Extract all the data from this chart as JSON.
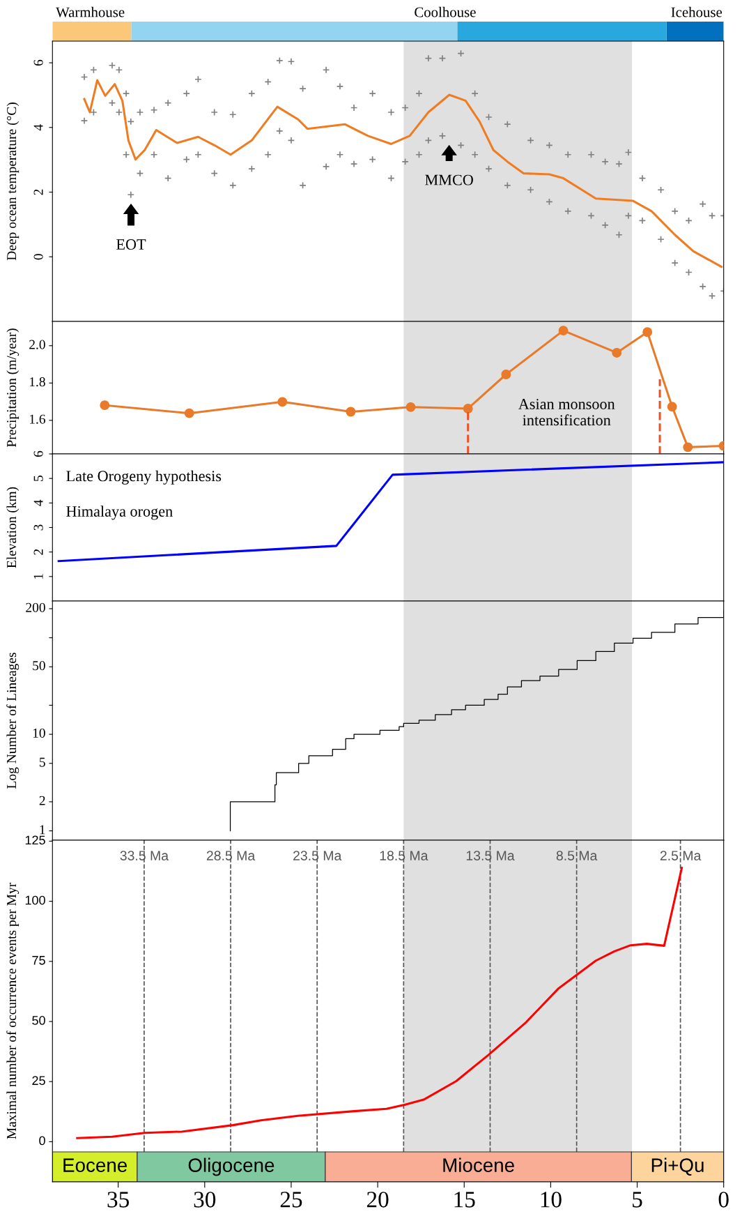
{
  "chart_data": [
    {
      "type": "bar",
      "orientation": "horizontal",
      "stacked": true,
      "categories": [
        null
      ],
      "xlim": [
        38.8,
        0
      ],
      "tick_labels": false,
      "series": [
        {
          "color": "#0070bf",
          "values": [
            3.3
          ]
        },
        {
          "color": "#29a8e0",
          "values": [
            12.1
          ]
        },
        {
          "color": "#93d4f0",
          "values": [
            18.85
          ]
        },
        {
          "color": "#fbc778",
          "values": [
            4.55
          ]
        }
      ],
      "annotations": [
        "Warmhouse",
        "Coolhouse",
        "Icehouse"
      ]
    },
    {
      "type": "scatter",
      "xlim": [
        38.8,
        0
      ],
      "ylim": [
        -2.0,
        6.67
      ],
      "yticks": [
        0,
        2,
        4,
        6
      ],
      "ylabel": "Deep ocean temperature (°C)",
      "tick_labels": "y",
      "bands": [
        {
          "axis": "x",
          "from": 18.5,
          "to": 5.3,
          "color": "#e0e0e0"
        }
      ],
      "series": [
        {
          "type": "scatter",
          "marker": "cross",
          "color": "#808080",
          "x": [
            36.96,
            36.96,
            36.42,
            36.42,
            35.35,
            35.35,
            34.95,
            34.95,
            34.54,
            34.54,
            34.27,
            34.27,
            33.74,
            33.74,
            32.93,
            32.93,
            32.12,
            32.12,
            31.05,
            31.05,
            30.38,
            30.38,
            29.44,
            29.44,
            28.37,
            28.37,
            27.28,
            27.28,
            26.34,
            26.34,
            25.67,
            25.67,
            25.0,
            25.0,
            24.33,
            24.33,
            22.98,
            22.98,
            22.18,
            22.18,
            21.37,
            21.37,
            20.3,
            20.3,
            19.22,
            19.22,
            18.41,
            18.41,
            17.61,
            17.61,
            17.07,
            17.07,
            16.26,
            16.26,
            15.19,
            15.19,
            14.38,
            14.38,
            13.58,
            13.58,
            12.5,
            12.5,
            11.16,
            11.16,
            10.08,
            10.08,
            9.0,
            9.0,
            7.66,
            7.66,
            6.85,
            6.85,
            6.05,
            6.05,
            5.51,
            5.51,
            4.7,
            4.7,
            3.63,
            3.63,
            2.82,
            2.82,
            2.02,
            2.02,
            1.21,
            1.21,
            0.67,
            0.67,
            0.0,
            0.0
          ],
          "values": [
            5.56,
            4.21,
            5.78,
            4.47,
            5.92,
            4.76,
            5.78,
            4.47,
            5.05,
            3.16,
            4.18,
            1.92,
            4.47,
            2.58,
            4.54,
            3.16,
            4.76,
            2.43,
            5.05,
            3.01,
            5.49,
            3.16,
            4.47,
            2.58,
            4.4,
            2.21,
            5.05,
            2.72,
            5.41,
            3.16,
            6.07,
            3.89,
            6.04,
            3.6,
            5.2,
            2.21,
            5.78,
            2.79,
            5.27,
            3.16,
            4.61,
            2.87,
            5.05,
            3.01,
            4.47,
            2.43,
            4.61,
            2.94,
            5.05,
            3.16,
            6.14,
            3.6,
            6.14,
            3.74,
            6.29,
            3.45,
            5.05,
            3.16,
            4.32,
            2.72,
            4.1,
            2.21,
            3.6,
            2.07,
            3.45,
            1.7,
            3.16,
            1.41,
            3.16,
            1.27,
            2.94,
            0.98,
            2.87,
            0.68,
            3.23,
            1.27,
            2.43,
            1.12,
            2.07,
            0.54,
            1.41,
            -0.19,
            1.12,
            -0.48,
            1.63,
            -0.92,
            1.27,
            -1.21,
            1.27,
            -1.06
          ]
        },
        {
          "type": "line",
          "color": "#f07c22",
          "x": [
            36.96,
            36.64,
            36.21,
            35.75,
            35.2,
            34.76,
            34.41,
            34.0,
            33.47,
            32.8,
            31.6,
            30.38,
            29.44,
            28.5,
            27.28,
            25.8,
            24.6,
            24.06,
            21.9,
            20.56,
            19.22,
            18.15,
            17.07,
            15.86,
            14.92,
            14.11,
            13.31,
            12.5,
            11.56,
            10.08,
            9.27,
            7.39,
            5.24,
            4.17,
            2.82,
            1.75,
            0.13
          ],
          "values": [
            4.88,
            4.47,
            5.46,
            4.98,
            5.34,
            4.83,
            3.6,
            3.01,
            3.3,
            3.92,
            3.52,
            3.71,
            3.45,
            3.16,
            3.6,
            4.64,
            4.25,
            3.96,
            4.1,
            3.74,
            3.49,
            3.74,
            4.47,
            5.01,
            4.83,
            4.18,
            3.3,
            2.94,
            2.58,
            2.55,
            2.43,
            1.8,
            1.73,
            1.41,
            0.68,
            0.17,
            -0.31
          ]
        }
      ],
      "annotations": [
        "EOT",
        "MMCO"
      ]
    },
    {
      "type": "line",
      "xlim": [
        38.8,
        0
      ],
      "ylim": [
        1.42,
        2.13
      ],
      "yticks": [
        1.6,
        1.8,
        {
          "value": 2.0,
          "label": "2.0"
        }
      ],
      "ylabel": "Precipitation (m/year)",
      "tick_labels": "y",
      "marker": "circle",
      "bands": [
        {
          "axis": "x",
          "from": 18.5,
          "to": 5.3,
          "color": "#e0e0e0"
        }
      ],
      "series": [
        {
          "color": "#e87a2a",
          "x": [
            35.78,
            30.89,
            25.51,
            21.56,
            18.09,
            14.78,
            12.58,
            9.27,
            6.18,
            4.41,
            2.98,
            2.07,
            0.0
          ],
          "values": [
            1.681,
            1.638,
            1.699,
            1.646,
            1.671,
            1.663,
            1.846,
            2.081,
            1.962,
            2.073,
            1.673,
            1.456,
            1.463
          ]
        },
        {
          "color": "#e8542a",
          "line_style": "dashed",
          "marker": "none",
          "x": [
            14.78,
            14.78
          ],
          "values": [
            1.42,
            1.663
          ]
        },
        {
          "color": "#e8542a",
          "line_style": "dashed",
          "marker": "none",
          "x": [
            3.69,
            3.69
          ],
          "values": [
            1.42,
            1.82
          ]
        }
      ],
      "annotations": [
        "Asian monsoon\nintensification"
      ]
    },
    {
      "type": "line",
      "xlim": [
        38.8,
        0
      ],
      "ylim": [
        0,
        6
      ],
      "yticks": [
        1,
        2,
        3,
        4,
        5,
        6
      ],
      "ylabel": "Elevation (km)",
      "tick_labels": "y",
      "bands": [
        {
          "axis": "x",
          "from": 18.5,
          "to": 5.3,
          "color": "#e0e0e0"
        }
      ],
      "series": [
        {
          "color": "#0000ff",
          "x": [
            38.44,
            22.39,
            19.14,
            0.05
          ],
          "values": [
            1.63,
            2.25,
            5.15,
            5.66
          ]
        }
      ],
      "annotations": [
        "Late Orogeny hypothesis",
        "Himalaya orogen"
      ]
    },
    {
      "type": "step",
      "log": true,
      "xlim": [
        38.8,
        0
      ],
      "ylim": [
        0.8,
        240
      ],
      "yticks": [
        1,
        2,
        5,
        10,
        {
          "value": 20,
          "label": null
        },
        50,
        {
          "value": 100,
          "label": null
        },
        200
      ],
      "ylabel": "Log Number of Lineages",
      "tick_labels": "y",
      "bands": [
        {
          "axis": "x",
          "from": 18.5,
          "to": 5.3,
          "color": "#e0e0e0"
        }
      ],
      "series": [
        {
          "color": "#000000",
          "x": [
            28.52,
            28.52,
            25.94,
            25.86,
            24.57,
            23.98,
            22.61,
            21.85,
            21.37,
            19.87,
            18.76,
            18.5,
            17.61,
            16.67,
            15.73,
            14.92,
            13.84,
            13.04,
            12.5,
            11.69,
            10.62,
            9.54,
            8.47,
            7.39,
            6.32,
            5.24,
            4.17,
            2.82,
            1.48,
            0.0
          ],
          "values": [
            1,
            2,
            3,
            4,
            5,
            6,
            7,
            9,
            10,
            11,
            12,
            13,
            14,
            16,
            18,
            20,
            23,
            26,
            31,
            36,
            40,
            47,
            58,
            72,
            88,
            99,
            114,
            139,
            162,
            192
          ]
        }
      ]
    },
    {
      "type": "line",
      "xlim": [
        38.8,
        0
      ],
      "xticks": [
        35,
        30,
        25,
        20,
        15,
        10,
        5,
        0
      ],
      "ylim": [
        -16.7,
        125.4
      ],
      "yticks": [
        0,
        25,
        50,
        75,
        100,
        125
      ],
      "ylabel": "Maximal number of occurrence events per Myr",
      "bands": [
        {
          "axis": "x",
          "from": 18.5,
          "to": 5.3,
          "color": "#e0e0e0"
        },
        {
          "axis": "x",
          "from": 38.8,
          "to": 33.9,
          "label": "Eocene",
          "color": "#d4ee2a"
        },
        {
          "axis": "x",
          "from": 33.9,
          "to": 23.03,
          "label": "Oligocene",
          "color": "#80c8a0"
        },
        {
          "axis": "x",
          "from": 23.03,
          "to": 5.33,
          "label": "Miocene",
          "color": "#f8ad94"
        },
        {
          "axis": "x",
          "from": 5.33,
          "to": 0,
          "label": "Pi+Qu",
          "color": "#fdd59c"
        }
      ],
      "ref_lines": [
        {
          "axis": "x",
          "value": 33.5,
          "label": "33.5 Ma",
          "color": "#555555",
          "line_style": "dashed"
        },
        {
          "axis": "x",
          "value": 28.5,
          "label": "28.5 Ma",
          "color": "#555555",
          "line_style": "dashed"
        },
        {
          "axis": "x",
          "value": 23.5,
          "label": "23.5 Ma",
          "color": "#555555",
          "line_style": "dashed"
        },
        {
          "axis": "x",
          "value": 18.5,
          "label": "18.5 Ma",
          "color": "#555555",
          "line_style": "dashed"
        },
        {
          "axis": "x",
          "value": 13.5,
          "label": "13.5 Ma",
          "color": "#555555",
          "line_style": "dashed"
        },
        {
          "axis": "x",
          "value": 8.5,
          "label": "8.5 Ma",
          "color": "#555555",
          "line_style": "dashed"
        },
        {
          "axis": "x",
          "value": 2.5,
          "label": "2.5 Ma",
          "color": "#555555",
          "line_style": "dashed"
        }
      ],
      "series": [
        {
          "color": "#ff0000",
          "x": [
            37.37,
            35.35,
            33.47,
            31.32,
            28.36,
            26.75,
            24.6,
            21.37,
            19.49,
            18.41,
            17.34,
            15.46,
            13.58,
            11.42,
            9.54,
            7.39,
            6.32,
            5.38,
            4.44,
            3.44,
            2.42
          ],
          "values": [
            1.5,
            2.1,
            3.7,
            4.2,
            6.9,
            8.9,
            10.8,
            12.7,
            13.7,
            15.4,
            17.5,
            25.2,
            36.2,
            49.7,
            63.8,
            75.3,
            79.2,
            81.7,
            82.3,
            81.5,
            113.9
          ]
        }
      ]
    }
  ]
}
